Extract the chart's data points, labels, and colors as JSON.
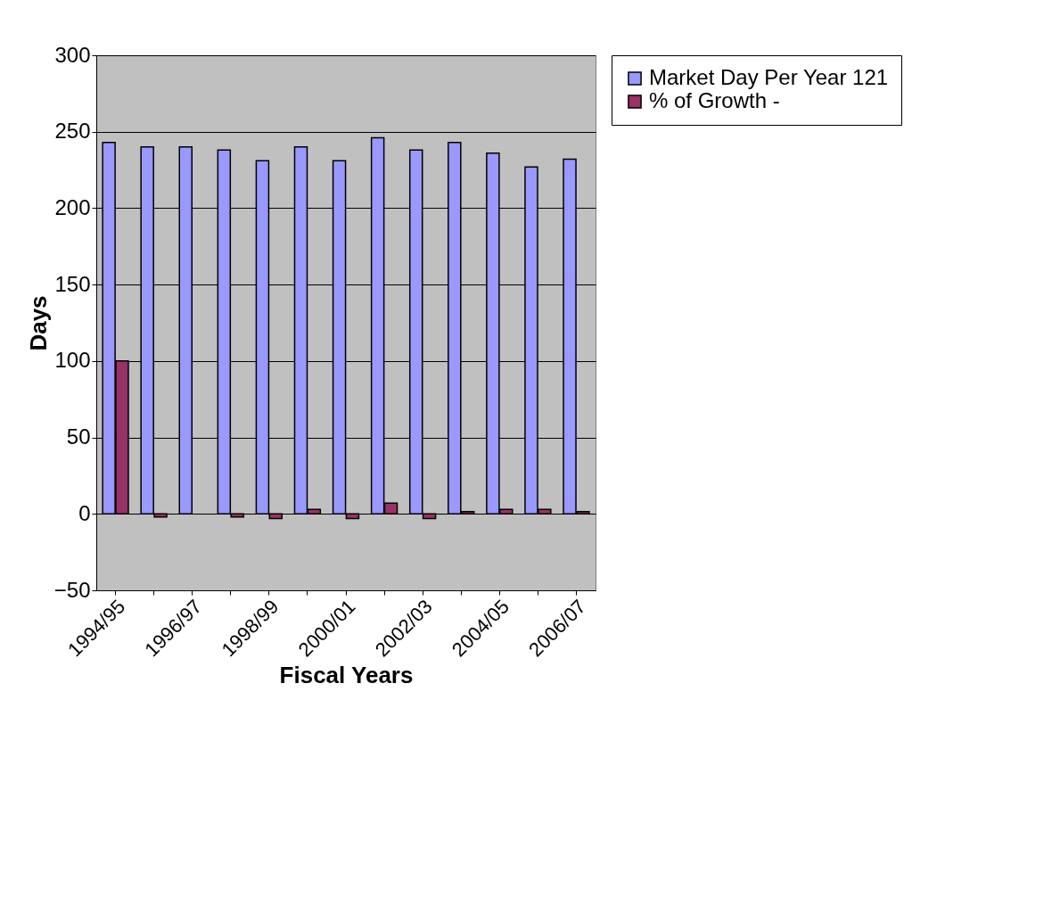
{
  "chart_data": {
    "type": "bar",
    "xlabel": "Fiscal Years",
    "ylabel": "Days",
    "categories": [
      "1994/95",
      null,
      "1996/97",
      null,
      "1998/99",
      null,
      "2000/01",
      null,
      "2002/03",
      null,
      "2004/05",
      null,
      "2006/07"
    ],
    "series": [
      {
        "name": "Market Day Per Year 121",
        "color": "#9999ff",
        "values": [
          243,
          240,
          240,
          238,
          231,
          240,
          231,
          246,
          238,
          243,
          236,
          227,
          232
        ]
      },
      {
        "name": "% of Growth -",
        "color": "#993366",
        "values": [
          100,
          -2,
          0,
          -2,
          -3,
          3,
          -3,
          7,
          -3,
          1.5,
          3,
          3,
          1.5
        ]
      }
    ],
    "ylim": [
      -50,
      300
    ],
    "yticks": [
      -50,
      0,
      50,
      100,
      150,
      200,
      250,
      300
    ],
    "grid": "y",
    "legend": "right"
  }
}
